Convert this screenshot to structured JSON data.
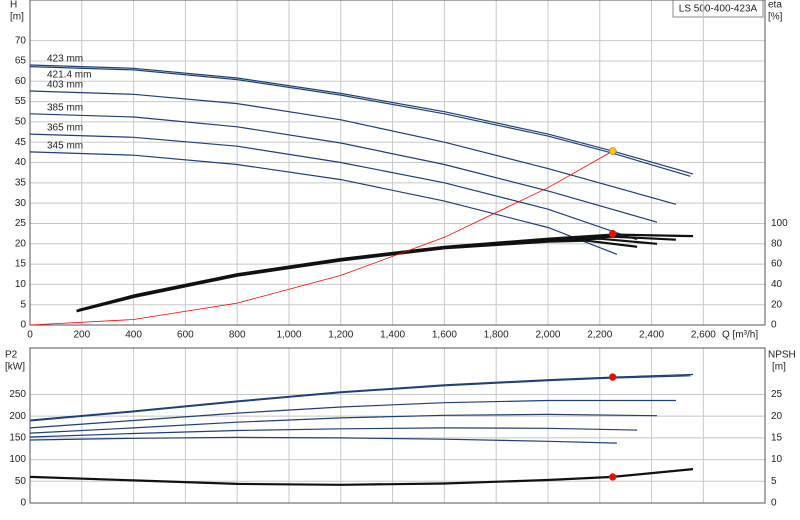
{
  "chart_data": [
    {
      "type": "line",
      "title": "LS 500-400-423A",
      "y_label": "H",
      "y_unit": "[m]",
      "y2_label": "eta",
      "y2_unit": "[%]",
      "x_label": "Q [m³/h]",
      "xlim": [
        0,
        2838
      ],
      "ylim": [
        0,
        80
      ],
      "y2lim": [
        0,
        320
      ],
      "grid": true,
      "xticks": [
        0,
        200,
        400,
        600,
        800,
        {
          "value": 1000,
          "label": "1,000"
        },
        {
          "value": 1200,
          "label": "1,200"
        },
        {
          "value": 1400,
          "label": "1,400"
        },
        {
          "value": 1600,
          "label": "1,600"
        },
        {
          "value": 1800,
          "label": "1,800"
        },
        {
          "value": 2000,
          "label": "2,000"
        },
        {
          "value": 2200,
          "label": "2,200"
        },
        {
          "value": 2400,
          "label": "2,400"
        },
        {
          "value": 2600,
          "label": "2,600"
        }
      ],
      "yticks": [
        0,
        5,
        10,
        15,
        20,
        25,
        30,
        35,
        40,
        45,
        50,
        55,
        60,
        65,
        70
      ],
      "y2ticks": [
        0,
        20,
        40,
        60,
        80,
        100
      ],
      "series": [
        {
          "name": "423 mm",
          "color": "#1f3f78",
          "x": [
            0,
            400,
            800,
            1200,
            1600,
            2000,
            2250,
            2560
          ],
          "values": [
            64,
            63.2,
            60.8,
            57,
            52.5,
            47,
            42.8,
            37.2
          ]
        },
        {
          "name": "421.4 mm",
          "color": "#1f3f78",
          "x": [
            0,
            400,
            800,
            1200,
            1600,
            2000,
            2250,
            2550
          ],
          "values": [
            63.6,
            62.8,
            60.4,
            56.6,
            52,
            46.5,
            42.3,
            36.6
          ]
        },
        {
          "name": "403 mm",
          "color": "#1f3f78",
          "x": [
            0,
            400,
            800,
            1200,
            1600,
            2000,
            2494
          ],
          "values": [
            57.6,
            56.8,
            54.5,
            50.5,
            45,
            38.5,
            29.7
          ]
        },
        {
          "name": "385 mm",
          "color": "#1f3f78",
          "x": [
            0,
            400,
            800,
            1200,
            1600,
            2000,
            2421
          ],
          "values": [
            52,
            51.2,
            48.8,
            44.8,
            39.5,
            33,
            25.3
          ]
        },
        {
          "name": "365 mm",
          "color": "#1f3f78",
          "x": [
            0,
            400,
            800,
            1200,
            1600,
            2000,
            2344
          ],
          "values": [
            47,
            46.2,
            44,
            40,
            35,
            28.5,
            21
          ]
        },
        {
          "name": "345 mm",
          "color": "#1f3f78",
          "x": [
            0,
            400,
            800,
            1200,
            1600,
            2000,
            2266
          ],
          "values": [
            42.6,
            41.8,
            39.5,
            35.8,
            30.5,
            24,
            17.4
          ]
        },
        {
          "color": "#111111",
          "axis": "y2",
          "x": [
            190,
            400,
            800,
            1200,
            1600,
            2000,
            2250,
            2560
          ],
          "values": [
            15,
            29,
            50,
            65,
            77,
            85,
            89,
            87.5
          ]
        },
        {
          "color": "#111111",
          "axis": "y2",
          "x": [
            180,
            400,
            800,
            1200,
            1600,
            2000,
            2250,
            2494
          ],
          "values": [
            14,
            28.5,
            49.5,
            64.5,
            76.5,
            84,
            87,
            84
          ]
        },
        {
          "color": "#111111",
          "axis": "y2",
          "x": [
            180,
            400,
            800,
            1200,
            1600,
            2000,
            2200,
            2421
          ],
          "values": [
            14,
            28,
            49,
            64,
            76,
            83,
            85,
            80
          ]
        },
        {
          "color": "#111111",
          "axis": "y2",
          "x": [
            180,
            400,
            800,
            1200,
            1600,
            2000,
            2150,
            2344
          ],
          "values": [
            13.5,
            27.5,
            48.5,
            63.5,
            75.5,
            82,
            83,
            77
          ]
        },
        {
          "color": "#ff0000",
          "x": [
            0,
            400,
            800,
            1200,
            1600,
            2000,
            2250
          ],
          "values": [
            0,
            1.35,
            5.4,
            12.2,
            21.6,
            33.8,
            42.8
          ]
        },
        {
          "color": "#ffc800",
          "marker": true,
          "x": [
            2250
          ],
          "values": [
            42.8
          ]
        },
        {
          "color": "#ff0000",
          "marker": true,
          "axis": "y2",
          "x": [
            2250
          ],
          "values": [
            90
          ]
        }
      ]
    },
    {
      "type": "line",
      "y_label": "P2",
      "y_unit": "[kW]",
      "y2_label": "NPSH",
      "y2_unit": "[m]",
      "xlim": [
        0,
        2838
      ],
      "ylim": [
        0,
        357
      ],
      "y2lim": [
        0,
        35.7
      ],
      "grid": true,
      "xticks": [
        0,
        200,
        400,
        600,
        800,
        1000,
        1200,
        1400,
        1600,
        1800,
        2000,
        2200,
        2400,
        2600
      ],
      "yticks": [
        0,
        50,
        100,
        150,
        200,
        250
      ],
      "y2ticks": [
        0,
        5,
        10,
        15,
        20,
        25
      ],
      "series": [
        {
          "color": "#1f3f78",
          "x": [
            0,
            400,
            800,
            1200,
            1600,
            2000,
            2250,
            2560
          ],
          "values": [
            191,
            212,
            235,
            256,
            272,
            284,
            290,
            296
          ]
        },
        {
          "color": "#1f3f78",
          "x": [
            0,
            400,
            800,
            1200,
            1600,
            2000,
            2250,
            2550
          ],
          "values": [
            189,
            210,
            233,
            254,
            270,
            282,
            288,
            293
          ]
        },
        {
          "color": "#1f3f78",
          "x": [
            0,
            400,
            800,
            1200,
            1600,
            2000,
            2494
          ],
          "values": [
            173,
            190,
            207,
            221,
            231,
            236,
            236
          ]
        },
        {
          "color": "#1f3f78",
          "x": [
            0,
            400,
            800,
            1200,
            1600,
            2000,
            2421
          ],
          "values": [
            161,
            173,
            186,
            196,
            202,
            204,
            201
          ]
        },
        {
          "color": "#1f3f78",
          "x": [
            0,
            400,
            800,
            1200,
            1600,
            2000,
            2344
          ],
          "values": [
            152,
            160,
            167,
            171,
            173,
            172,
            168
          ]
        },
        {
          "color": "#1f3f78",
          "x": [
            0,
            400,
            800,
            1200,
            1600,
            2000,
            2266
          ],
          "values": [
            145,
            149,
            151,
            150,
            147,
            142,
            138
          ]
        },
        {
          "color": "#111111",
          "axis": "y2",
          "x": [
            0,
            400,
            800,
            1200,
            1600,
            2000,
            2250,
            2560
          ],
          "values": [
            6,
            5.2,
            4.4,
            4.2,
            4.5,
            5.3,
            6,
            7.8
          ]
        },
        {
          "color": "#ff0000",
          "marker": true,
          "x": [
            2250
          ],
          "values": [
            290
          ]
        },
        {
          "color": "#ff0000",
          "marker": true,
          "axis": "y2",
          "x": [
            2250
          ],
          "values": [
            6
          ]
        }
      ]
    }
  ]
}
